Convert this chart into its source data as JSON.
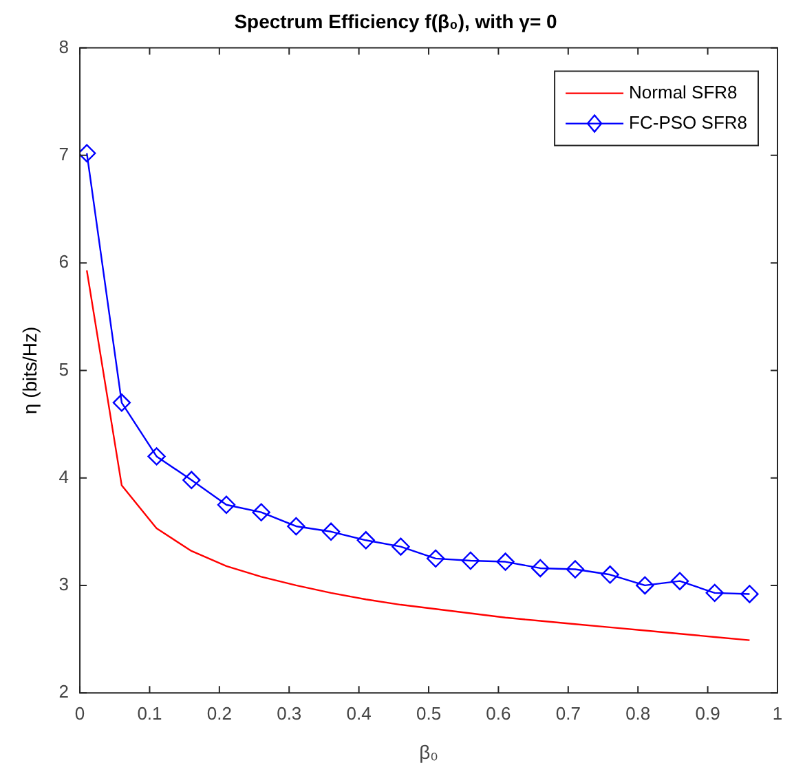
{
  "chart_data": {
    "type": "line",
    "title": "Spectrum Efficiency f(β₀), with γ= 0",
    "xlabel": "β₀",
    "ylabel": "η (bits/Hz)",
    "x": [
      0.01,
      0.06,
      0.11,
      0.16,
      0.21,
      0.26,
      0.31,
      0.36,
      0.41,
      0.46,
      0.51,
      0.56,
      0.61,
      0.66,
      0.71,
      0.76,
      0.81,
      0.86,
      0.91,
      0.96
    ],
    "series": [
      {
        "name": "Normal SFR8",
        "color": "#ff0000",
        "marker": "none",
        "values": [
          5.93,
          3.93,
          3.53,
          3.32,
          3.18,
          3.08,
          3.0,
          2.93,
          2.87,
          2.82,
          2.78,
          2.74,
          2.7,
          2.67,
          2.64,
          2.61,
          2.58,
          2.55,
          2.52,
          2.49
        ]
      },
      {
        "name": "FC-PSO SFR8",
        "color": "#0000ff",
        "marker": "diamond",
        "values": [
          7.02,
          4.7,
          4.2,
          3.98,
          3.75,
          3.68,
          3.55,
          3.5,
          3.42,
          3.36,
          3.25,
          3.23,
          3.22,
          3.16,
          3.15,
          3.1,
          3.0,
          3.04,
          2.93,
          2.92
        ]
      }
    ],
    "xlim": [
      0,
      1
    ],
    "xticks": [
      0,
      0.1,
      0.2,
      0.3,
      0.4,
      0.5,
      0.6,
      0.7,
      0.8,
      0.9,
      1
    ],
    "ylim": [
      2,
      8
    ],
    "yticks": [
      2,
      3,
      4,
      5,
      6,
      7,
      8
    ],
    "legend": "top right",
    "grid": false
  }
}
